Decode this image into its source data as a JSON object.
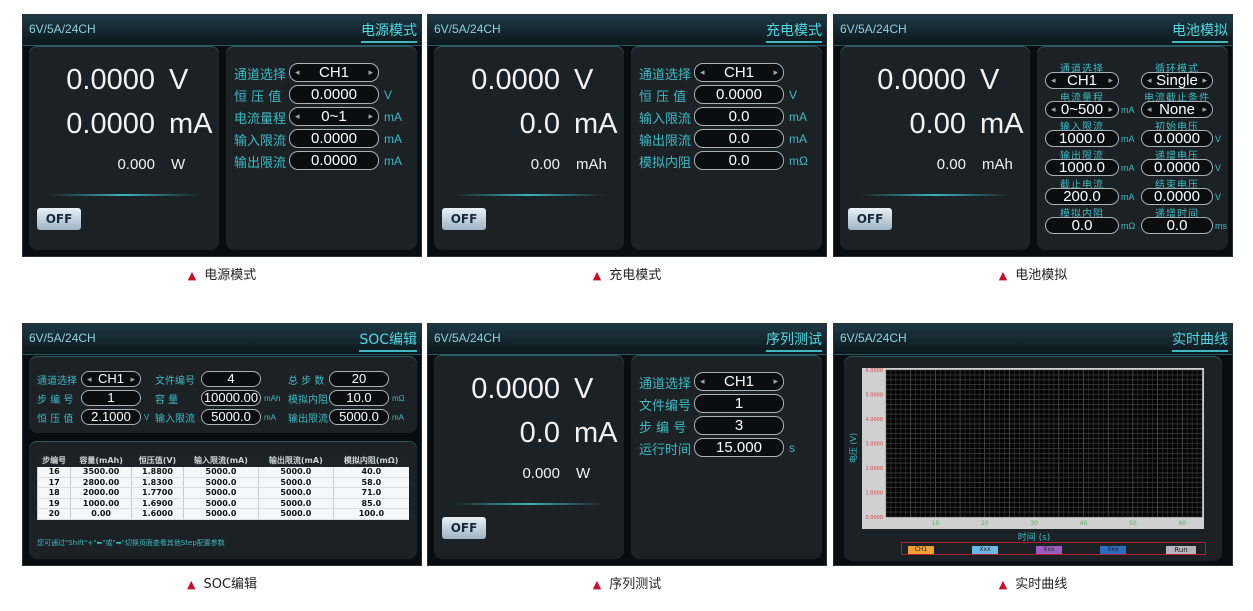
{
  "header_left": "6V/5A/24CH",
  "off_label": "OFF",
  "caption_marker": "▲",
  "colors": {
    "accent": "#3fb9c2",
    "caption_marker": "#c8102e",
    "panel_bg": "#0a0d10",
    "box_bg": "#1b2125"
  },
  "power": {
    "mode": "电源模式",
    "caption": "电源模式",
    "readout": [
      {
        "value": "0.0000",
        "unit": "V",
        "size": "big"
      },
      {
        "value": "0.0000",
        "unit": "mA",
        "size": "big"
      },
      {
        "value": "0.000",
        "unit": "W",
        "size": "small"
      }
    ],
    "fields": [
      {
        "label": "通道选择",
        "value": "CH1",
        "unit": "",
        "selector": true
      },
      {
        "label": "恒 压 值",
        "value": "0.0000",
        "unit": "V",
        "selector": false
      },
      {
        "label": "电流量程",
        "value": "0~1",
        "unit": "mA",
        "selector": true
      },
      {
        "label": "输入限流",
        "value": "0.0000",
        "unit": "mA",
        "selector": false
      },
      {
        "label": "输出限流",
        "value": "0.0000",
        "unit": "mA",
        "selector": false
      }
    ]
  },
  "charge": {
    "mode": "充电模式",
    "caption": "充电模式",
    "readout": [
      {
        "value": "0.0000",
        "unit": "V",
        "size": "big"
      },
      {
        "value": "0.0",
        "unit": "mA",
        "size": "big"
      },
      {
        "value": "0.00",
        "unit": "mAh",
        "size": "small"
      }
    ],
    "fields": [
      {
        "label": "通道选择",
        "value": "CH1",
        "unit": "",
        "selector": true
      },
      {
        "label": "恒 压 值",
        "value": "0.0000",
        "unit": "V",
        "selector": false
      },
      {
        "label": "输入限流",
        "value": "0.0",
        "unit": "mA",
        "selector": false
      },
      {
        "label": "输出限流",
        "value": "0.0",
        "unit": "mA",
        "selector": false
      },
      {
        "label": "模拟内阻",
        "value": "0.0",
        "unit": "mΩ",
        "selector": false
      }
    ]
  },
  "battery": {
    "mode": "电池模拟",
    "caption": "电池模拟",
    "readout": [
      {
        "value": "0.0000",
        "unit": "V",
        "size": "big"
      },
      {
        "value": "0.00",
        "unit": "mA",
        "size": "big"
      },
      {
        "value": "0.00",
        "unit": "mAh",
        "size": "small"
      }
    ],
    "left_fields": [
      {
        "label": "通道选择",
        "value": "CH1",
        "unit": "",
        "selector": true
      },
      {
        "label": "电流量程",
        "value": "0~500",
        "unit": "mA",
        "selector": true
      },
      {
        "label": "输入限流",
        "value": "1000.0",
        "unit": "mA",
        "selector": false
      },
      {
        "label": "输出限流",
        "value": "1000.0",
        "unit": "mA",
        "selector": false
      },
      {
        "label": "截止电流",
        "value": "200.0",
        "unit": "mA",
        "selector": false
      },
      {
        "label": "模拟内阻",
        "value": "0.0",
        "unit": "mΩ",
        "selector": false
      }
    ],
    "right_fields": [
      {
        "label": "循环模式",
        "value": "Single",
        "unit": "",
        "selector": true
      },
      {
        "label": "电流截止条件",
        "value": "None",
        "unit": "",
        "selector": true
      },
      {
        "label": "初始电压",
        "value": "0.0000",
        "unit": "V",
        "selector": false
      },
      {
        "label": "递增电压",
        "value": "0.0000",
        "unit": "V",
        "selector": false
      },
      {
        "label": "结束电压",
        "value": "0.0000",
        "unit": "V",
        "selector": false
      },
      {
        "label": "递增时间",
        "value": "0.0",
        "unit": "ms",
        "selector": false
      }
    ]
  },
  "soc": {
    "mode": "SOC编辑",
    "caption": "SOC编辑",
    "fields": [
      {
        "label": "通道选择",
        "value": "CH1",
        "unit": "",
        "selector": true
      },
      {
        "label": "文件编号",
        "value": "4",
        "unit": "",
        "selector": false
      },
      {
        "label": "总 步 数",
        "value": "20",
        "unit": "",
        "selector": false
      },
      {
        "label": "步 编 号",
        "value": "1",
        "unit": "",
        "selector": false
      },
      {
        "label": "容    量",
        "value": "10000.00",
        "unit": "mAh",
        "selector": false
      },
      {
        "label": "模拟内阻",
        "value": "10.0",
        "unit": "mΩ",
        "selector": false
      },
      {
        "label": "恒 压 值",
        "value": "2.1000",
        "unit": "V",
        "selector": false
      },
      {
        "label": "输入限流",
        "value": "5000.0",
        "unit": "mA",
        "selector": false
      },
      {
        "label": "输出限流",
        "value": "5000.0",
        "unit": "mA",
        "selector": false
      }
    ],
    "table": {
      "columns": [
        "步编号",
        "容量(mAh)",
        "恒压值(V)",
        "输入限流(mA)",
        "输出限流(mA)",
        "模拟内阻(mΩ)"
      ],
      "rows": [
        [
          "16",
          "3500.00",
          "1.8800",
          "5000.0",
          "5000.0",
          "40.0"
        ],
        [
          "17",
          "2800.00",
          "1.8300",
          "5000.0",
          "5000.0",
          "58.0"
        ],
        [
          "18",
          "2000.00",
          "1.7700",
          "5000.0",
          "5000.0",
          "71.0"
        ],
        [
          "19",
          "1000.00",
          "1.6900",
          "5000.0",
          "5000.0",
          "85.0"
        ],
        [
          "20",
          "0.00",
          "1.6000",
          "5000.0",
          "5000.0",
          "100.0"
        ]
      ]
    },
    "hint": "您可通过\"Shift\"+\"⬅\"或\"➡\"切换页面查看其他Step配置参数"
  },
  "sequence": {
    "mode": "序列测试",
    "caption": "序列测试",
    "readout": [
      {
        "value": "0.0000",
        "unit": "V",
        "size": "big"
      },
      {
        "value": "0.0",
        "unit": "mA",
        "size": "big"
      },
      {
        "value": "0.000",
        "unit": "W",
        "size": "small"
      }
    ],
    "fields": [
      {
        "label": "通道选择",
        "value": "CH1",
        "unit": "",
        "selector": true
      },
      {
        "label": "文件编号",
        "value": "1",
        "unit": "",
        "selector": false
      },
      {
        "label": "步 编 号",
        "value": "3",
        "unit": "",
        "selector": false
      },
      {
        "label": "运行时间",
        "value": "15.000",
        "unit": "s",
        "selector": false
      }
    ]
  },
  "curve": {
    "mode": "实时曲线",
    "caption": "实时曲线",
    "buttons": [
      {
        "label": "CH1",
        "color": "#f0a030"
      },
      {
        "label": "Xxx",
        "color": "#6cb8e6"
      },
      {
        "label": "Xxx",
        "color": "#9a5cc0"
      },
      {
        "label": "Xxx",
        "color": "#2a6cc0"
      },
      {
        "label": "Run",
        "color": "#b9b3bd"
      }
    ]
  },
  "chart_data": {
    "type": "line",
    "xlabel": "时间 (s)",
    "ylabel": "电压 (V)",
    "xlim": [
      0,
      64
    ],
    "ylim": [
      0,
      6
    ],
    "xticks": [
      10,
      20,
      30,
      40,
      50,
      60
    ],
    "yticks": [
      "0.0000",
      "1.0000",
      "2.0000",
      "3.0000",
      "4.0000",
      "5.0000",
      "6.0000"
    ],
    "grid": true,
    "series": []
  }
}
